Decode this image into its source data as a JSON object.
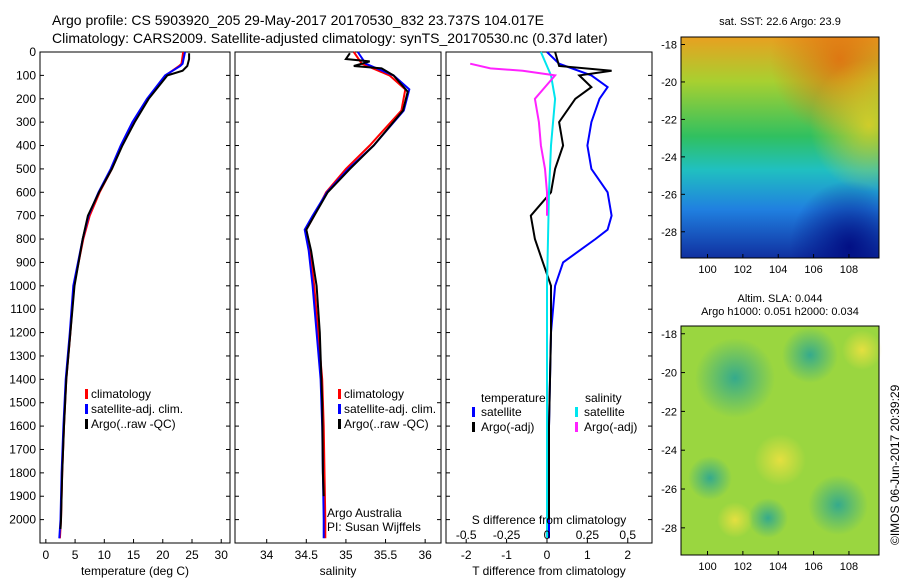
{
  "header": {
    "title_line1": "Argo profile: CS 5903920_205 29-May-2017 20170530_832 23.737S 104.017E",
    "title_line2": "Climatology: CARS2009. Satellite-adjusted climatology: synTS_20170530.nc (0.37d later)"
  },
  "colors": {
    "climatology": "#ff0000",
    "satellite_adj": "#0000ff",
    "argo": "#000000",
    "salinity_satellite": "#00e5ee",
    "salinity_argo": "#ff22ff"
  },
  "chart_data": [
    {
      "type": "line",
      "xlabel": "temperature (deg C)",
      "ylabel": "",
      "xlim": [
        -1,
        31.5
      ],
      "ylim": [
        2100,
        0
      ],
      "xticks": [
        0,
        5,
        10,
        15,
        20,
        25,
        30
      ],
      "yticks": [
        0,
        100,
        200,
        300,
        400,
        500,
        600,
        700,
        800,
        900,
        1000,
        1100,
        1200,
        1300,
        1400,
        1500,
        1600,
        1700,
        1800,
        1900,
        2000
      ],
      "legend": [
        "climatology",
        "satellite-adj. clim.",
        "Argo(..raw -QC)"
      ],
      "legend_position": "lower-middle",
      "series": [
        {
          "name": "climatology",
          "color": "#ff0000",
          "x": [
            23.5,
            23.2,
            22.8,
            20.5,
            17.5,
            15,
            13,
            11.3,
            9.2,
            7.5,
            6.4,
            5.6,
            4.8,
            4.2,
            3.5,
            3.1,
            2.8,
            2.6,
            2.4
          ],
          "y": [
            0,
            50,
            60,
            100,
            200,
            300,
            400,
            500,
            600,
            700,
            800,
            900,
            1000,
            1200,
            1400,
            1600,
            1800,
            2000,
            2080
          ]
        },
        {
          "name": "satellite-adj. clim.",
          "color": "#0000ff",
          "x": [
            23.8,
            23.4,
            23.0,
            20.4,
            17.3,
            14.8,
            12.8,
            11.1,
            9.0,
            7.3,
            6.3,
            5.5,
            4.7,
            4.1,
            3.4,
            3.0,
            2.7,
            2.5,
            2.3
          ],
          "y": [
            0,
            50,
            60,
            100,
            200,
            300,
            400,
            500,
            600,
            700,
            800,
            900,
            1000,
            1200,
            1400,
            1600,
            1800,
            2000,
            2080
          ]
        },
        {
          "name": "Argo(..raw -QC)",
          "color": "#000000",
          "x": [
            24.5,
            24.5,
            24.2,
            23.4,
            20.8,
            17.6,
            15.2,
            13.1,
            11.3,
            9.1,
            7.2,
            6.3,
            5.6,
            4.9,
            4.2,
            3.5,
            3.1,
            2.8,
            2.6,
            2.5
          ],
          "y": [
            5,
            30,
            60,
            80,
            100,
            200,
            300,
            400,
            500,
            600,
            700,
            800,
            900,
            1000,
            1200,
            1400,
            1600,
            1800,
            2000,
            2040
          ]
        }
      ],
      "annotations": []
    },
    {
      "type": "line",
      "xlabel": "salinity",
      "xlim": [
        33.6,
        36.2
      ],
      "ylim": [
        2100,
        0
      ],
      "xticks": [
        34,
        34.5,
        35,
        35.5,
        36
      ],
      "legend": [
        "climatology",
        "satellite-adj. clim.",
        "Argo(..raw -QC)"
      ],
      "legend_position": "lower-right",
      "series": [
        {
          "name": "climatology",
          "color": "#ff0000",
          "x": [
            35.1,
            35.2,
            35.55,
            35.75,
            35.7,
            35.3,
            35.0,
            34.75,
            34.6,
            34.5,
            34.55,
            34.6,
            34.65,
            34.7,
            34.72,
            34.73,
            34.74,
            34.74
          ],
          "y": [
            0,
            50,
            100,
            160,
            250,
            400,
            500,
            600,
            700,
            760,
            850,
            1000,
            1200,
            1400,
            1600,
            1800,
            2000,
            2080
          ]
        },
        {
          "name": "satellite-adj. clim.",
          "color": "#0000ff",
          "x": [
            35.15,
            35.25,
            35.6,
            35.8,
            35.73,
            35.35,
            35.03,
            34.76,
            34.58,
            34.48,
            34.53,
            34.58,
            34.63,
            34.68,
            34.7,
            34.71,
            34.72,
            34.72
          ],
          "y": [
            0,
            50,
            100,
            160,
            250,
            400,
            500,
            600,
            700,
            760,
            850,
            1000,
            1200,
            1400,
            1600,
            1800,
            2000,
            2080
          ]
        },
        {
          "name": "Argo(..raw -QC)",
          "color": "#000000",
          "x": [
            35.05,
            35.0,
            35.3,
            35.1,
            35.45,
            35.6,
            35.78,
            35.72,
            35.35,
            35.05,
            34.77,
            34.6,
            34.5,
            34.56,
            34.63,
            34.67,
            34.7,
            34.71,
            34.72
          ],
          "y": [
            5,
            30,
            40,
            60,
            70,
            100,
            170,
            250,
            400,
            500,
            600,
            700,
            760,
            850,
            1000,
            1200,
            1500,
            1800,
            1900
          ]
        }
      ],
      "annotations": [
        "Argo Australia",
        "PI: Susan Wijffels"
      ]
    },
    {
      "type": "line",
      "xlabel": "T difference from climatology",
      "xlabel_top": "S difference from climatology",
      "xlim": [
        -2.5,
        2.6
      ],
      "ylim": [
        2100,
        0
      ],
      "xticks": [
        -2,
        -1,
        0,
        1,
        2
      ],
      "xticks_top": [
        "-0.5",
        "-0.25",
        "0",
        "0.25",
        "0.5"
      ],
      "legend_headers": [
        "temperature",
        "salinity"
      ],
      "legend": [
        "satellite",
        "Argo(-adj)",
        "satellite",
        "Argo(-adj)"
      ],
      "legend_position": "lower-middle",
      "series": [
        {
          "name": "satellite",
          "color": "#0000ff",
          "x": [
            0,
            0.3,
            1.1,
            1.5,
            1.3,
            1.1,
            1.0,
            1.1,
            1.3,
            1.5,
            1.6,
            1.5,
            1.2,
            0.8,
            0.4,
            0.2,
            0.1,
            0.05,
            0.05,
            0.05
          ],
          "y": [
            0,
            50,
            100,
            150,
            200,
            300,
            400,
            500,
            550,
            600,
            700,
            760,
            800,
            850,
            900,
            1000,
            1200,
            1600,
            2000,
            2080
          ]
        },
        {
          "name": "Argo(-adj)",
          "color": "#000000",
          "x": [
            0.2,
            0.3,
            1.6,
            0.8,
            1.1,
            0.7,
            0.3,
            0.4,
            0.2,
            0.1,
            -0.4,
            -0.3,
            -0.1,
            0.1,
            0.1,
            0.05,
            0.05
          ],
          "y": [
            0,
            60,
            80,
            100,
            150,
            200,
            300,
            400,
            500,
            600,
            700,
            800,
            900,
            1000,
            1200,
            1600,
            2000
          ]
        },
        {
          "name": "satellite",
          "color": "#00e5ee",
          "x": [
            -0.15,
            0.1,
            0.2,
            0.1,
            0.05,
            0.0,
            0.0,
            0.0
          ],
          "y": [
            0,
            100,
            200,
            400,
            600,
            1000,
            1600,
            2080
          ]
        },
        {
          "name": "Argo(-adj)",
          "color": "#ff22ff",
          "x": [
            -1.9,
            -1.4,
            -0.6,
            0.2,
            -0.3,
            -0.2,
            -0.15,
            -0.05,
            0.0,
            0.0
          ],
          "y": [
            50,
            70,
            80,
            100,
            200,
            300,
            400,
            500,
            600,
            700
          ]
        }
      ]
    },
    {
      "type": "heatmap",
      "title": "sat. SST: 22.6  Argo: 23.9",
      "xlim": [
        98.5,
        109.7
      ],
      "ylim": [
        -29.4,
        -17.6
      ],
      "xticks": [
        100,
        102,
        104,
        106,
        108
      ],
      "yticks": [
        -18,
        -20,
        -22,
        -24,
        -26,
        -28
      ]
    },
    {
      "type": "heatmap",
      "title": "Altim. SLA: 0.044",
      "subtitle": "Argo h1000: 0.051 h2000: 0.034",
      "xlim": [
        98.5,
        109.7
      ],
      "ylim": [
        -29.4,
        -17.6
      ],
      "xticks": [
        100,
        102,
        104,
        106,
        108
      ],
      "yticks": [
        -18,
        -20,
        -22,
        -24,
        -26,
        -28
      ]
    }
  ],
  "footer": {
    "stamp": "©IMOS 06-Jun-2017 20:39:29"
  }
}
